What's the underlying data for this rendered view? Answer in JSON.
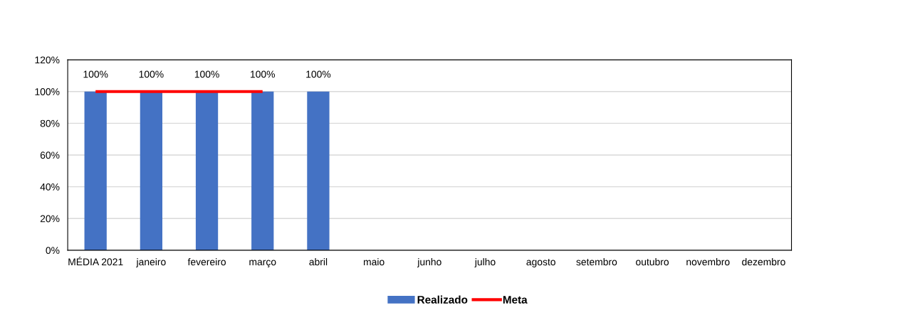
{
  "chart_data": {
    "type": "bar",
    "categories": [
      "MÉDIA 2021",
      "janeiro",
      "fevereiro",
      "março",
      "abril",
      "maio",
      "junho",
      "julho",
      "agosto",
      "setembro",
      "outubro",
      "novembro",
      "dezembro"
    ],
    "series": [
      {
        "name": "Realizado",
        "color": "#4472c4",
        "values": [
          100,
          100,
          100,
          100,
          100,
          null,
          null,
          null,
          null,
          null,
          null,
          null,
          null
        ],
        "value_labels": [
          "100%",
          "100%",
          "100%",
          "100%",
          "100%",
          null,
          null,
          null,
          null,
          null,
          null,
          null,
          null
        ]
      },
      {
        "name": "Meta",
        "type": "line",
        "color": "#ff0000",
        "values": [
          100,
          100,
          100,
          100,
          null,
          null,
          null,
          null,
          null,
          null,
          null,
          null,
          null
        ]
      }
    ],
    "ylim": [
      0,
      120
    ],
    "yticks": [
      {
        "value": 0,
        "label": "0%"
      },
      {
        "value": 20,
        "label": "20%"
      },
      {
        "value": 40,
        "label": "40%"
      },
      {
        "value": 60,
        "label": "60%"
      },
      {
        "value": 80,
        "label": "80%"
      },
      {
        "value": 100,
        "label": "100%"
      },
      {
        "value": 120,
        "label": "120%"
      }
    ],
    "grid": "y",
    "legend": "bottom",
    "marker": "none",
    "line_style": "solid"
  }
}
